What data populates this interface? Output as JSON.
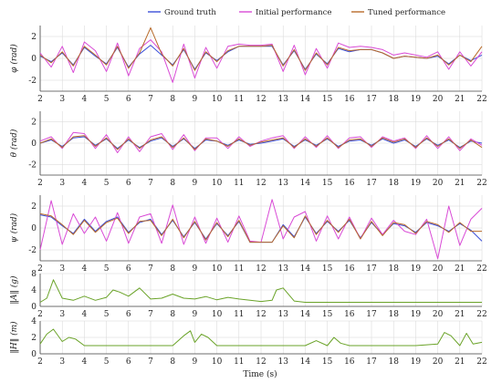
{
  "chart_data": {
    "type": "line",
    "xlabel": "Time (s)",
    "xlim": [
      2,
      22
    ],
    "xticks": [
      2,
      3,
      4,
      5,
      6,
      7,
      8,
      9,
      10,
      11,
      12,
      13,
      14,
      15,
      16,
      17,
      18,
      19,
      20,
      21,
      22
    ],
    "legend": {
      "placement": "top-center",
      "entries": [
        {
          "name": "Ground truth",
          "color": "#3b4fd8"
        },
        {
          "name": "Initial performance",
          "color": "#d94bd6"
        },
        {
          "name": "Tuned performance",
          "color": "#b86a2a"
        }
      ]
    },
    "grid": true,
    "panels": [
      {
        "ylabel": "φ (rad)",
        "ylim": [
          -3,
          3
        ],
        "yticks": [
          -2,
          0,
          2
        ],
        "x": [
          2,
          2.5,
          3,
          3.5,
          4,
          4.5,
          5,
          5.5,
          6,
          6.5,
          7,
          7.5,
          8,
          8.5,
          9,
          9.5,
          10,
          10.5,
          11,
          11.5,
          12,
          12.5,
          13,
          13.5,
          14,
          14.5,
          15,
          15.5,
          16,
          16.5,
          17,
          17.5,
          18,
          18.5,
          19,
          19.5,
          20,
          20.5,
          21,
          21.5,
          22
        ],
        "series": [
          {
            "name": "Ground truth",
            "values": [
              0.2,
              -0.3,
              0.5,
              -0.6,
              1.0,
              0.2,
              -0.5,
              1.0,
              -0.8,
              0.4,
              1.2,
              0.3,
              -0.6,
              0.8,
              -1.0,
              0.5,
              -0.2,
              0.6,
              1.1,
              1.1,
              1.1,
              1.1,
              -0.6,
              0.7,
              -1.0,
              0.4,
              -0.5,
              0.9,
              0.6,
              0.8,
              0.8,
              0.5,
              0.0,
              0.2,
              0.1,
              0.0,
              0.2,
              -0.5,
              0.3,
              -0.2,
              0.3
            ]
          },
          {
            "name": "Initial performance",
            "values": [
              0.5,
              -0.8,
              1.1,
              -1.3,
              1.5,
              0.7,
              -1.2,
              1.4,
              -1.6,
              0.9,
              1.7,
              0.6,
              -2.2,
              1.3,
              -1.8,
              1.0,
              -0.9,
              1.1,
              1.3,
              1.2,
              1.2,
              1.3,
              -1.2,
              1.2,
              -1.5,
              0.9,
              -0.9,
              1.4,
              1.0,
              1.1,
              1.0,
              0.8,
              0.3,
              0.5,
              0.3,
              0.1,
              0.6,
              -1.0,
              0.6,
              -0.7,
              0.6
            ]
          },
          {
            "name": "Tuned performance",
            "values": [
              0.3,
              -0.4,
              0.6,
              -0.7,
              1.1,
              0.3,
              -0.6,
              1.1,
              -0.9,
              0.5,
              2.8,
              0.4,
              -0.7,
              0.9,
              -1.1,
              0.6,
              -0.3,
              0.7,
              1.1,
              1.1,
              1.1,
              1.2,
              -0.7,
              0.8,
              -1.1,
              0.5,
              -0.6,
              1.0,
              0.7,
              0.8,
              0.8,
              0.5,
              0.0,
              0.2,
              0.1,
              0.0,
              0.3,
              -0.6,
              0.3,
              -0.3,
              1.1
            ]
          }
        ]
      },
      {
        "ylabel": "θ (rad)",
        "ylim": [
          -3,
          3
        ],
        "yticks": [
          -2,
          0,
          2
        ],
        "x": [
          2,
          2.5,
          3,
          3.5,
          4,
          4.5,
          5,
          5.5,
          6,
          6.5,
          7,
          7.5,
          8,
          8.5,
          9,
          9.5,
          10,
          10.5,
          11,
          11.5,
          12,
          12.5,
          13,
          13.5,
          14,
          14.5,
          15,
          15.5,
          16,
          16.5,
          17,
          17.5,
          18,
          18.5,
          19,
          19.5,
          20,
          20.5,
          21,
          21.5,
          22
        ],
        "series": [
          {
            "name": "Ground truth",
            "values": [
              0.0,
              0.3,
              -0.3,
              0.5,
              0.6,
              -0.2,
              0.4,
              -0.5,
              0.3,
              -0.4,
              0.2,
              0.5,
              -0.3,
              0.4,
              -0.5,
              0.3,
              0.2,
              -0.2,
              0.3,
              -0.1,
              0.0,
              0.2,
              0.4,
              -0.3,
              0.3,
              -0.2,
              0.4,
              -0.3,
              0.2,
              0.3,
              -0.2,
              0.4,
              0.0,
              0.3,
              -0.3,
              0.4,
              -0.2,
              0.3,
              -0.4,
              0.2,
              0.0
            ]
          },
          {
            "name": "Initial performance",
            "values": [
              0.2,
              0.6,
              -0.5,
              1.0,
              0.9,
              -0.5,
              0.8,
              -0.9,
              0.6,
              -0.8,
              0.6,
              0.9,
              -0.6,
              0.8,
              -0.7,
              0.5,
              0.5,
              -0.5,
              0.6,
              -0.3,
              0.2,
              0.5,
              0.7,
              -0.5,
              0.6,
              -0.4,
              0.7,
              -0.5,
              0.5,
              0.6,
              -0.4,
              0.6,
              0.2,
              0.5,
              -0.5,
              0.7,
              -0.5,
              0.6,
              -0.7,
              0.4,
              -0.2
            ]
          },
          {
            "name": "Tuned performance",
            "values": [
              0.0,
              0.4,
              -0.4,
              0.6,
              0.7,
              -0.3,
              0.5,
              -0.6,
              0.4,
              -0.5,
              0.3,
              0.6,
              -0.4,
              0.5,
              -0.6,
              0.4,
              0.2,
              -0.3,
              0.4,
              -0.2,
              0.1,
              0.3,
              0.5,
              -0.4,
              0.4,
              -0.3,
              0.5,
              -0.4,
              0.3,
              0.4,
              -0.3,
              0.5,
              0.1,
              0.4,
              -0.4,
              0.5,
              -0.3,
              0.4,
              -0.5,
              0.3,
              -0.4
            ]
          }
        ]
      },
      {
        "ylabel": "ψ (rad)",
        "ylim": [
          -3,
          3
        ],
        "yticks": [
          -2,
          0,
          2
        ],
        "x": [
          2,
          2.5,
          3,
          3.5,
          4,
          4.5,
          5,
          5.5,
          6,
          6.5,
          7,
          7.5,
          8,
          8.5,
          9,
          9.5,
          10,
          10.5,
          11,
          11.5,
          12,
          12.5,
          13,
          13.5,
          14,
          14.5,
          15,
          15.5,
          16,
          16.5,
          17,
          17.5,
          18,
          18.5,
          19,
          19.5,
          20,
          20.5,
          21,
          21.5,
          22
        ],
        "series": [
          {
            "name": "Ground truth",
            "values": [
              1.2,
              1.0,
              0.2,
              -0.5,
              0.8,
              -0.3,
              0.6,
              1.0,
              -0.4,
              0.5,
              0.8,
              -0.6,
              0.7,
              -0.8,
              0.5,
              -1.0,
              0.4,
              -0.7,
              0.6,
              -1.3,
              -1.3,
              -1.3,
              0.3,
              -0.8,
              1.0,
              -0.5,
              0.6,
              -0.3,
              0.7,
              -0.9,
              0.5,
              -0.6,
              0.4,
              0.2,
              -0.4,
              0.5,
              0.2,
              -0.3,
              0.4,
              -0.2,
              -1.2
            ]
          },
          {
            "name": "Initial performance",
            "values": [
              -2.0,
              2.5,
              -1.5,
              1.3,
              -0.5,
              1.0,
              -1.2,
              1.4,
              -1.4,
              1.0,
              1.3,
              -1.4,
              2.1,
              -1.5,
              1.0,
              -1.4,
              0.9,
              -1.3,
              1.1,
              -1.2,
              -1.3,
              2.6,
              -1.0,
              1.0,
              1.5,
              -1.2,
              1.1,
              -1.0,
              1.0,
              -1.0,
              0.9,
              -0.6,
              0.7,
              -0.3,
              -0.6,
              0.8,
              -2.8,
              2.0,
              -1.6,
              0.8,
              1.8
            ]
          },
          {
            "name": "Tuned performance",
            "values": [
              1.3,
              1.1,
              0.3,
              -0.6,
              0.7,
              -0.4,
              0.5,
              0.9,
              -0.5,
              0.6,
              0.7,
              -0.7,
              0.8,
              -0.9,
              0.6,
              -1.1,
              0.5,
              -0.8,
              0.7,
              -1.3,
              -1.3,
              -1.3,
              0.2,
              -0.9,
              1.1,
              -0.6,
              0.7,
              -0.4,
              0.8,
              -1.0,
              0.6,
              -0.7,
              0.5,
              0.3,
              -0.5,
              0.6,
              0.3,
              -0.4,
              0.5,
              -0.3,
              -0.3
            ]
          }
        ]
      },
      {
        "ylabel": "‖A‖ (g)",
        "ylim": [
          0,
          8
        ],
        "yticks": [
          0,
          4,
          8
        ],
        "x": [
          2,
          2.3,
          2.6,
          3,
          3.5,
          4,
          4.5,
          5,
          5.3,
          5.6,
          6,
          6.5,
          7,
          7.5,
          8,
          8.5,
          9,
          9.5,
          10,
          10.5,
          11,
          11.5,
          12,
          12.5,
          12.7,
          13,
          13.5,
          14,
          15,
          16,
          17,
          18,
          19,
          20,
          21,
          22
        ],
        "series": [
          {
            "name": "",
            "color": "#6aa328",
            "values": [
              1.0,
              2.0,
              6.5,
              2.0,
              1.5,
              2.5,
              1.5,
              2.2,
              4.0,
              3.5,
              2.5,
              4.5,
              1.8,
              2.0,
              3.0,
              2.0,
              1.8,
              2.4,
              1.6,
              2.2,
              1.8,
              1.5,
              1.2,
              1.5,
              4.0,
              4.5,
              1.3,
              1.0,
              1.0,
              1.0,
              1.0,
              1.0,
              1.0,
              1.0,
              1.0,
              1.0
            ]
          }
        ]
      },
      {
        "ylabel": "‖H‖ (m)",
        "ylim": [
          0,
          4
        ],
        "yticks": [
          0,
          2,
          4
        ],
        "x": [
          2,
          2.3,
          2.6,
          3,
          3.3,
          3.6,
          4,
          5,
          6,
          7,
          8,
          8.5,
          8.8,
          9,
          9.3,
          9.6,
          10,
          11,
          12,
          13,
          14,
          14.5,
          15,
          15.3,
          15.6,
          16,
          17,
          18,
          19,
          20,
          20.3,
          20.6,
          21,
          21.3,
          21.6,
          22
        ],
        "series": [
          {
            "name": "",
            "color": "#6aa328",
            "values": [
              1.2,
              2.4,
              3.0,
              1.5,
              2.0,
              1.8,
              1.0,
              1.0,
              1.0,
              1.0,
              1.0,
              2.2,
              2.8,
              1.4,
              2.4,
              2.0,
              1.0,
              1.0,
              1.0,
              1.0,
              1.0,
              1.6,
              1.0,
              2.0,
              1.3,
              1.0,
              1.0,
              1.0,
              1.0,
              1.2,
              2.6,
              2.2,
              1.0,
              2.5,
              1.2,
              1.4
            ]
          }
        ]
      }
    ]
  }
}
